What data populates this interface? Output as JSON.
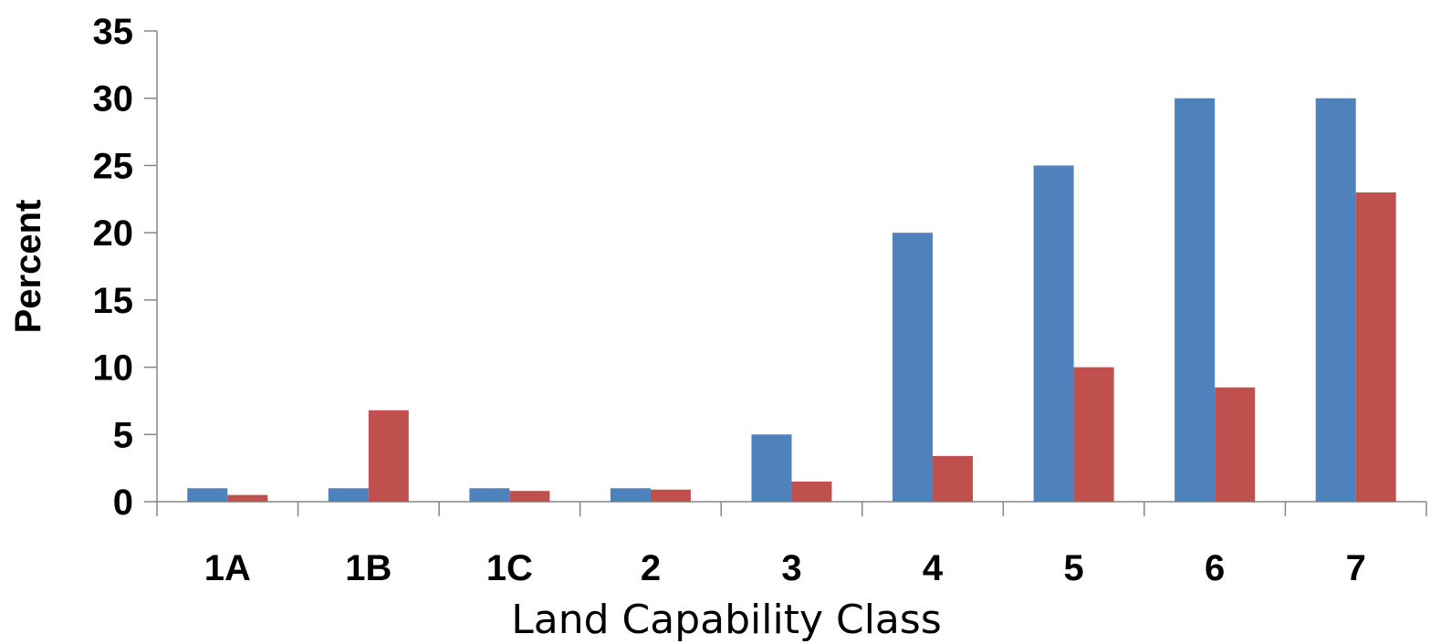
{
  "chart_data": {
    "type": "bar",
    "title": "",
    "xlabel": "Land Capability Class",
    "ylabel": "Percent",
    "categories": [
      "1A",
      "1B",
      "1C",
      "2",
      "3",
      "4",
      "5",
      "6",
      "7"
    ],
    "series": [
      {
        "color": "#4F81BD",
        "values": [
          1,
          1,
          1,
          1,
          5,
          20,
          25,
          30,
          30
        ]
      },
      {
        "color": "#C0504D",
        "values": [
          0.5,
          6.8,
          0.8,
          0.9,
          1.5,
          3.4,
          10,
          8.5,
          23
        ]
      }
    ],
    "ylim": [
      0,
      35
    ],
    "yticks": [
      0,
      5,
      10,
      15,
      20,
      25,
      30,
      35
    ],
    "grid": false,
    "legend": "none"
  }
}
